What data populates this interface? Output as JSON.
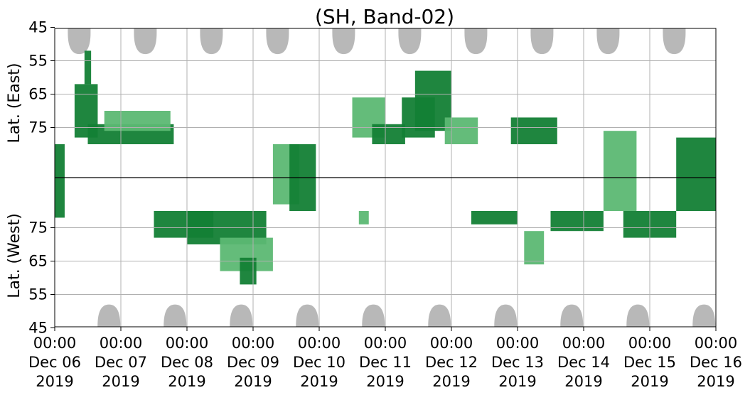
{
  "chart_data": {
    "type": "heatmap",
    "title": "(SH, Band-02)",
    "ylabel_top": "Lat. (East)",
    "ylabel_bottom": "Lat. (West)",
    "x_ticks": [
      {
        "time": "00:00",
        "date": "Dec 06",
        "year": "2019"
      },
      {
        "time": "00:00",
        "date": "Dec 07",
        "year": "2019"
      },
      {
        "time": "00:00",
        "date": "Dec 08",
        "year": "2019"
      },
      {
        "time": "00:00",
        "date": "Dec 09",
        "year": "2019"
      },
      {
        "time": "00:00",
        "date": "Dec 10",
        "year": "2019"
      },
      {
        "time": "00:00",
        "date": "Dec 11",
        "year": "2019"
      },
      {
        "time": "00:00",
        "date": "Dec 12",
        "year": "2019"
      },
      {
        "time": "00:00",
        "date": "Dec 13",
        "year": "2019"
      },
      {
        "time": "00:00",
        "date": "Dec 14",
        "year": "2019"
      },
      {
        "time": "00:00",
        "date": "Dec 15",
        "year": "2019"
      },
      {
        "time": "00:00",
        "date": "Dec 16",
        "year": "2019"
      }
    ],
    "xlim": [
      "2019-12-06 00:00",
      "2019-12-16 00:00"
    ],
    "y_ticks_top": [
      "45",
      "55",
      "65",
      "75"
    ],
    "y_ticks_bottom": [
      "75",
      "65",
      "55",
      "45"
    ],
    "grid": true,
    "colors": {
      "coverage_gap": "#b8b8b8",
      "activity_dark": "#137f35",
      "activity_light": "#5cb873",
      "divider": "#000000"
    },
    "coverage_gaps_east": [
      {
        "center_day": 0.37,
        "min_lat": 53
      },
      {
        "center_day": 1.37,
        "min_lat": 53
      },
      {
        "center_day": 2.37,
        "min_lat": 53
      },
      {
        "center_day": 3.37,
        "min_lat": 53
      },
      {
        "center_day": 4.37,
        "min_lat": 53
      },
      {
        "center_day": 5.37,
        "min_lat": 53
      },
      {
        "center_day": 6.37,
        "min_lat": 53
      },
      {
        "center_day": 7.37,
        "min_lat": 53
      },
      {
        "center_day": 8.37,
        "min_lat": 53
      },
      {
        "center_day": 9.37,
        "min_lat": 53
      }
    ],
    "coverage_gaps_west": [
      {
        "center_day": 0.82,
        "min_lat": 52
      },
      {
        "center_day": 1.82,
        "min_lat": 52
      },
      {
        "center_day": 2.82,
        "min_lat": 52
      },
      {
        "center_day": 3.82,
        "min_lat": 52
      },
      {
        "center_day": 4.82,
        "min_lat": 52
      },
      {
        "center_day": 5.82,
        "min_lat": 52
      },
      {
        "center_day": 6.82,
        "min_lat": 52
      },
      {
        "center_day": 7.82,
        "min_lat": 52
      },
      {
        "center_day": 8.82,
        "min_lat": 52
      },
      {
        "center_day": 9.82,
        "min_lat": 52
      }
    ],
    "activity_regions": [
      {
        "day_start": 0.0,
        "day_end": 0.15,
        "lat_from": -78,
        "lat_to": 80,
        "level": "dark"
      },
      {
        "day_start": 0.3,
        "day_end": 0.65,
        "lat_from": 62,
        "lat_to": 78,
        "level": "dark"
      },
      {
        "day_start": 0.45,
        "day_end": 0.55,
        "lat_from": 52,
        "lat_to": 62,
        "level": "dark"
      },
      {
        "day_start": 0.5,
        "day_end": 1.8,
        "lat_from": 74,
        "lat_to": 80,
        "level": "dark"
      },
      {
        "day_start": 0.75,
        "day_end": 1.75,
        "lat_from": 70,
        "lat_to": 76,
        "level": "light"
      },
      {
        "day_start": 1.5,
        "day_end": 2.4,
        "lat_from": -80,
        "lat_to": -72,
        "level": "dark"
      },
      {
        "day_start": 2.0,
        "day_end": 3.2,
        "lat_from": -80,
        "lat_to": -70,
        "level": "dark"
      },
      {
        "day_start": 2.5,
        "day_end": 3.3,
        "lat_from": -72,
        "lat_to": -62,
        "level": "light"
      },
      {
        "day_start": 2.8,
        "day_end": 3.05,
        "lat_from": -66,
        "lat_to": -58,
        "level": "dark"
      },
      {
        "day_start": 3.3,
        "day_end": 3.7,
        "lat_from": -82,
        "lat_to": 80,
        "level": "light"
      },
      {
        "day_start": 3.55,
        "day_end": 3.95,
        "lat_from": -80,
        "lat_to": 80,
        "level": "dark"
      },
      {
        "day_start": 4.6,
        "day_end": 4.75,
        "lat_from": -80,
        "lat_to": -76,
        "level": "light"
      },
      {
        "day_start": 4.5,
        "day_end": 5.0,
        "lat_from": 66,
        "lat_to": 78,
        "level": "light"
      },
      {
        "day_start": 4.8,
        "day_end": 5.3,
        "lat_from": 74,
        "lat_to": 80,
        "level": "dark"
      },
      {
        "day_start": 5.25,
        "day_end": 5.75,
        "lat_from": 66,
        "lat_to": 78,
        "level": "dark"
      },
      {
        "day_start": 5.45,
        "day_end": 6.0,
        "lat_from": 58,
        "lat_to": 76,
        "level": "dark"
      },
      {
        "day_start": 5.9,
        "day_end": 6.4,
        "lat_from": 72,
        "lat_to": 80,
        "level": "light"
      },
      {
        "day_start": 6.3,
        "day_end": 7.0,
        "lat_from": -80,
        "lat_to": -76,
        "level": "dark"
      },
      {
        "day_start": 6.9,
        "day_end": 7.6,
        "lat_from": 72,
        "lat_to": 80,
        "level": "dark"
      },
      {
        "day_start": 7.1,
        "day_end": 7.4,
        "lat_from": -74,
        "lat_to": -64,
        "level": "light"
      },
      {
        "day_start": 7.5,
        "day_end": 8.3,
        "lat_from": -80,
        "lat_to": -74,
        "level": "dark"
      },
      {
        "day_start": 8.3,
        "day_end": 8.8,
        "lat_from": -80,
        "lat_to": 76,
        "level": "light"
      },
      {
        "day_start": 8.6,
        "day_end": 9.4,
        "lat_from": -80,
        "lat_to": -72,
        "level": "dark"
      },
      {
        "day_start": 9.4,
        "day_end": 10.0,
        "lat_from": -80,
        "lat_to": 78,
        "level": "dark"
      }
    ]
  }
}
